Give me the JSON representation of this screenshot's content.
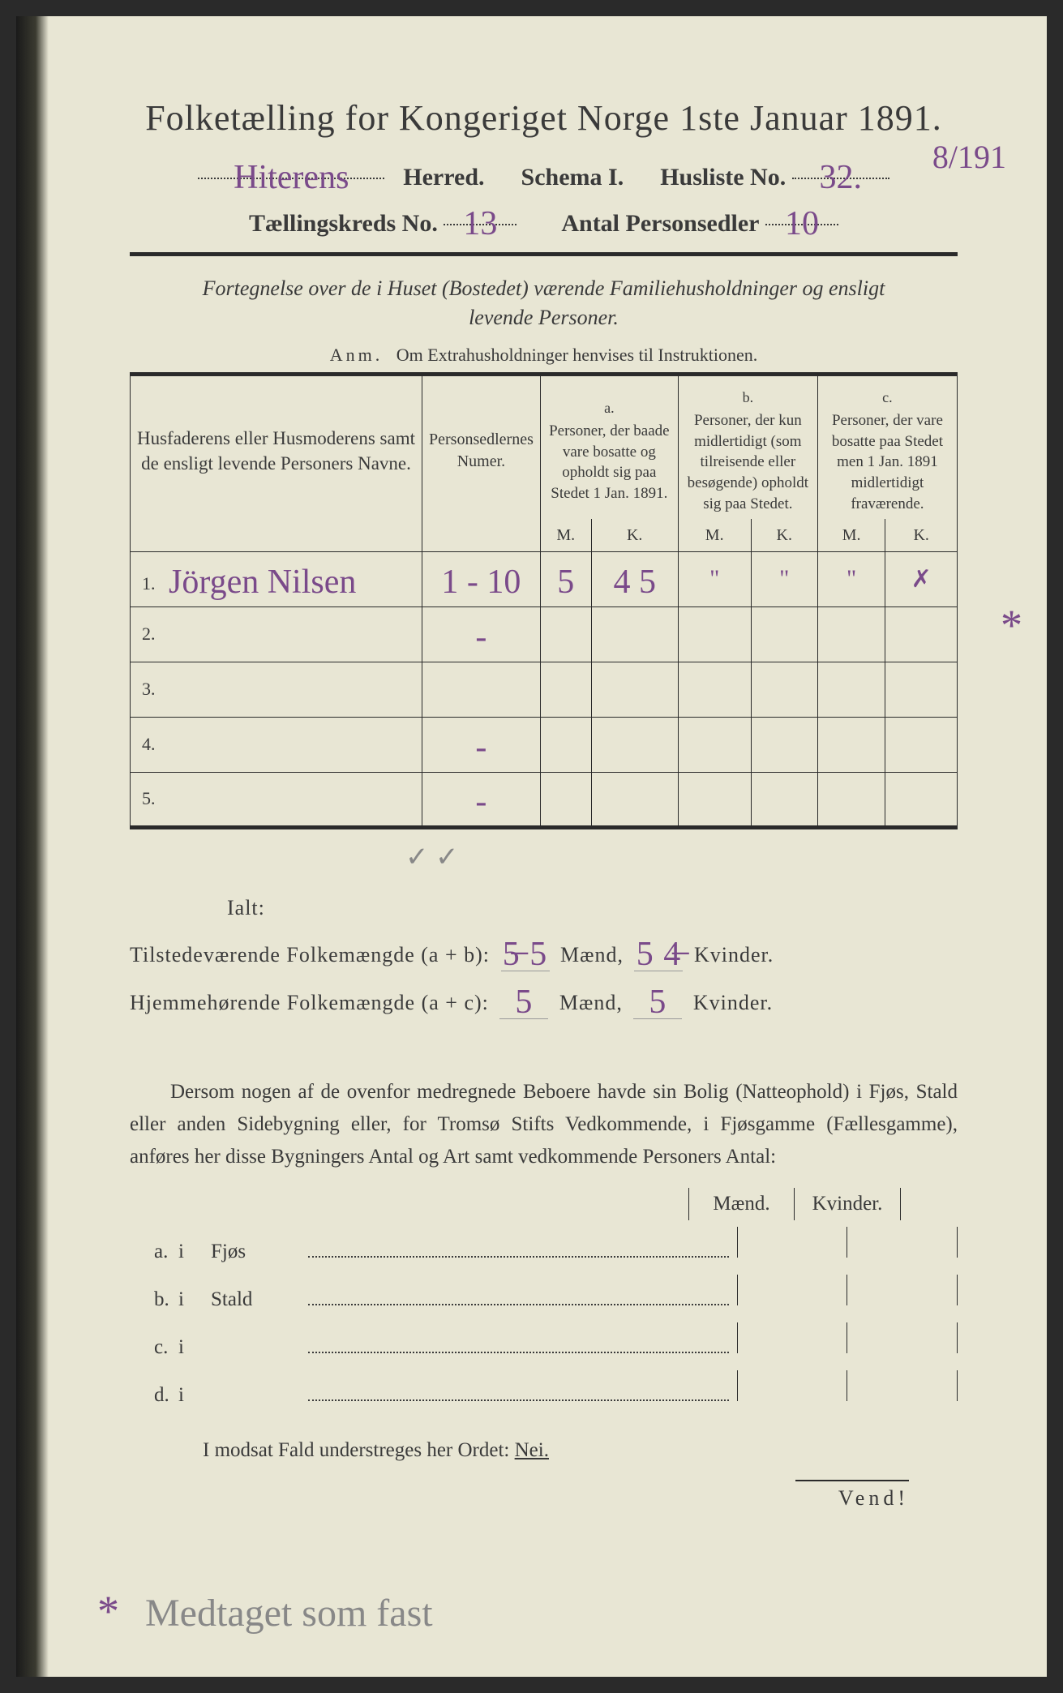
{
  "title": "Folketælling for Kongeriget Norge 1ste Januar 1891.",
  "header": {
    "herred_value": "Hiterens",
    "herred_label": "Herred.",
    "schema_label": "Schema I.",
    "husliste_label": "Husliste No.",
    "husliste_value": "32.",
    "side_fraction": "8/191",
    "kreds_label": "Tællingskreds No.",
    "kreds_value": "13",
    "antal_label": "Antal Personsedler",
    "antal_value": "10"
  },
  "fortegnelse_line1": "Fortegnelse over de i Huset (Bostedet) værende Familiehusholdninger og ensligt",
  "fortegnelse_line2": "levende Personer.",
  "anm_lead": "Anm.",
  "anm_text": "Om Extrahusholdninger henvises til Instruktionen.",
  "table": {
    "col_names": "Husfaderens eller Husmoderens samt de ensligt levende Personers Navne.",
    "col_num": "Personsedlernes Numer.",
    "col_a_letter": "a.",
    "col_a": "Personer, der baade vare bosatte og opholdt sig paa Stedet 1 Jan. 1891.",
    "col_b_letter": "b.",
    "col_b": "Personer, der kun midlertidigt (som tilreisende eller besøgende) opholdt sig paa Stedet.",
    "col_c_letter": "c.",
    "col_c": "Personer, der vare bosatte paa Stedet men 1 Jan. 1891 midlertidigt fraværende.",
    "mk_m": "M.",
    "mk_k": "K.",
    "rows": [
      {
        "num": "1.",
        "name": "Jörgen Nilsen",
        "sedler": "1 - 10",
        "a_m": "5",
        "a_k": "4 5",
        "b_m": "\"",
        "b_k": "\"",
        "c_m": "\"",
        "c_k": "✗"
      },
      {
        "num": "2.",
        "name": "",
        "sedler": "-",
        "a_m": "",
        "a_k": "",
        "b_m": "",
        "b_k": "",
        "c_m": "",
        "c_k": ""
      },
      {
        "num": "3.",
        "name": "",
        "sedler": "",
        "a_m": "",
        "a_k": "",
        "b_m": "",
        "b_k": "",
        "c_m": "",
        "c_k": ""
      },
      {
        "num": "4.",
        "name": "",
        "sedler": "-",
        "a_m": "",
        "a_k": "",
        "b_m": "",
        "b_k": "",
        "c_m": "",
        "c_k": ""
      },
      {
        "num": "5.",
        "name": "",
        "sedler": "-",
        "a_m": "",
        "a_k": "",
        "b_m": "",
        "b_k": "",
        "c_m": "",
        "c_k": ""
      }
    ]
  },
  "below_table_marks": "✓   ✓",
  "ialt": {
    "label": "Ialt:",
    "row1_a": "Tilstedeværende Folkemængde (a + b):",
    "row1_m": "5̶ 5",
    "row1_mid": "Mænd,",
    "row1_k": "5 4̶",
    "row1_end": "Kvinder.",
    "row2_a": "Hjemmehørende Folkemængde (a + c):",
    "row2_m": "5",
    "row2_k": "5"
  },
  "dersom": "Dersom nogen af de ovenfor medregnede Beboere havde sin Bolig (Natteophold) i Fjøs, Stald eller anden Sidebygning eller, for Tromsø Stifts Vedkommende, i Fjøsgamme (Fællesgamme), anføres her disse Bygningers Antal og Art samt vedkommende Personers Antal:",
  "mk_header_m": "Mænd.",
  "mk_header_k": "Kvinder.",
  "abcd": [
    {
      "lett": "a.",
      "i": "i",
      "label": "Fjøs"
    },
    {
      "lett": "b.",
      "i": "i",
      "label": "Stald"
    },
    {
      "lett": "c.",
      "i": "i",
      "label": ""
    },
    {
      "lett": "d.",
      "i": "i",
      "label": ""
    }
  ],
  "modsat": "I modsat Fald understreges her Ordet:",
  "modsat_nei": "Nei.",
  "vend": "Vend!",
  "footnote": "Medtaget som fast",
  "asterisk": "*",
  "colors": {
    "paper": "#e8e6d4",
    "ink": "#3a3a3a",
    "handwriting_purple": "#7a4a8a",
    "handwriting_pencil": "#888888"
  }
}
